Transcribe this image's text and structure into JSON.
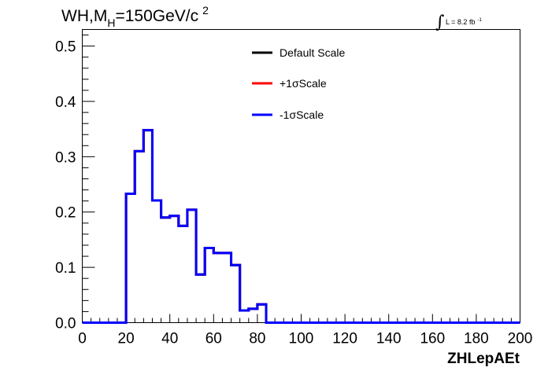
{
  "title": {
    "main": "WH,M",
    "subscript": "H",
    "rest": "=150GeV/c",
    "superscript": "2"
  },
  "luminosity": {
    "symbol": "∫",
    "text": "L = 8.2 fb",
    "superscript": "-1"
  },
  "legend": {
    "placement": "top-center",
    "entries": [
      {
        "label": "Default Scale",
        "color": "#000000"
      },
      {
        "label": "+1σScale",
        "color": "#ff0000"
      },
      {
        "label": "-1σScale",
        "color": "#0000ff"
      }
    ]
  },
  "chart_data": {
    "type": "line",
    "style": "step-histogram",
    "xlabel": "ZHLepAEt",
    "ylabel": "",
    "xlim": [
      0,
      200
    ],
    "ylim": [
      0,
      0.53
    ],
    "xticks": [
      0,
      20,
      40,
      60,
      80,
      100,
      120,
      140,
      160,
      180,
      200
    ],
    "xtick_labels": [
      "0",
      "20",
      "40",
      "60",
      "80",
      "100",
      "120",
      "140",
      "160",
      "180",
      "200"
    ],
    "yticks": [
      0,
      0.1,
      0.2,
      0.3,
      0.4,
      0.5
    ],
    "ytick_labels": [
      "0.0",
      "0.1",
      "0.2",
      "0.3",
      "0.4",
      "0.5"
    ],
    "grid": false,
    "bin_edges": [
      0,
      4,
      8,
      12,
      16,
      20,
      24,
      28,
      32,
      36,
      40,
      44,
      48,
      52,
      56,
      60,
      64,
      68,
      72,
      76,
      80,
      84,
      88,
      200
    ],
    "series": [
      {
        "name": "Default Scale",
        "color": "#000000",
        "values": [
          0,
          0,
          0,
          0,
          0,
          0.233,
          0.31,
          0.348,
          0.221,
          0.19,
          0.193,
          0.175,
          0.204,
          0.087,
          0.135,
          0.126,
          0.126,
          0.104,
          0.022,
          0.025,
          0.033,
          0,
          0
        ]
      },
      {
        "name": "+1σScale",
        "color": "#ff0000",
        "values": [
          0,
          0,
          0,
          0,
          0,
          0.233,
          0.31,
          0.348,
          0.221,
          0.19,
          0.193,
          0.175,
          0.204,
          0.087,
          0.135,
          0.126,
          0.126,
          0.104,
          0.022,
          0.025,
          0.033,
          0,
          0
        ]
      },
      {
        "name": "-1σScale",
        "color": "#0000ff",
        "values": [
          0,
          0,
          0,
          0,
          0,
          0.233,
          0.31,
          0.348,
          0.221,
          0.19,
          0.193,
          0.175,
          0.204,
          0.087,
          0.135,
          0.126,
          0.126,
          0.104,
          0.022,
          0.025,
          0.033,
          0,
          0
        ]
      }
    ]
  }
}
